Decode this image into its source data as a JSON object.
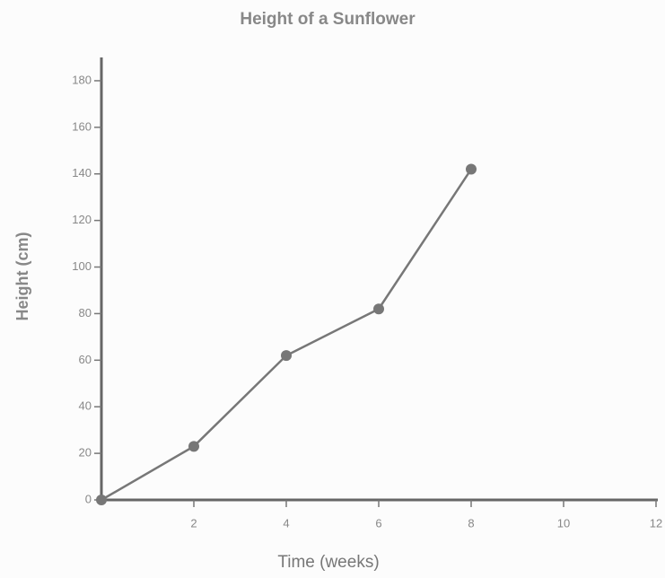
{
  "chart_data": {
    "type": "line",
    "title": "Height of a Sunflower",
    "x_label": "Time (weeks)",
    "y_label": "Height (cm)",
    "x": [
      0,
      2,
      4,
      6,
      8
    ],
    "values": [
      0,
      23,
      62,
      82,
      142
    ],
    "color": "#777777",
    "xlim": [
      0,
      12
    ],
    "xticks": [
      2,
      4,
      6,
      8,
      10,
      12
    ],
    "ylim": [
      0,
      190
    ],
    "yticks": [
      0,
      20,
      40,
      60,
      80,
      100,
      120,
      140,
      160,
      180
    ]
  }
}
